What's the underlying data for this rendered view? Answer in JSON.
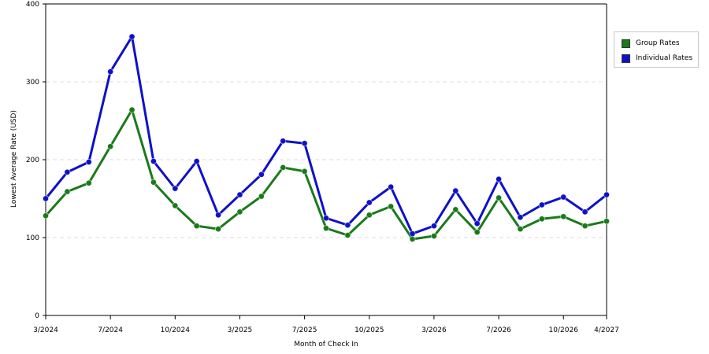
{
  "chart_data": {
    "type": "line",
    "title": "",
    "xlabel": "Month of Check In",
    "ylabel": "Lowest Average Rate (USD)",
    "ylim": [
      0,
      400
    ],
    "yticks": [
      0,
      100,
      200,
      300,
      400
    ],
    "x_tick_labels": [
      "3/2024",
      "7/2024",
      "10/2024",
      "3/2025",
      "7/2025",
      "10/2025",
      "3/2026",
      "7/2026",
      "10/2026",
      "4/2027"
    ],
    "x_tick_index": [
      0,
      3,
      6,
      9,
      12,
      15,
      18,
      21,
      24,
      26
    ],
    "grid": true,
    "legend_position": "right",
    "series": [
      {
        "name": "Group Rates",
        "color": "#1a7a1a",
        "values": [
          128,
          159,
          170,
          217,
          264,
          171,
          141,
          115,
          111,
          133,
          153,
          190,
          185,
          112,
          103,
          129,
          140,
          98,
          102,
          136,
          107,
          151,
          111,
          124,
          127,
          115,
          121
        ]
      },
      {
        "name": "Individual Rates",
        "color": "#1010c8",
        "values": [
          150,
          184,
          197,
          313,
          358,
          198,
          163,
          198,
          129,
          155,
          181,
          224,
          221,
          125,
          116,
          145,
          165,
          105,
          115,
          160,
          118,
          175,
          126,
          142,
          152,
          133,
          155
        ]
      }
    ]
  }
}
